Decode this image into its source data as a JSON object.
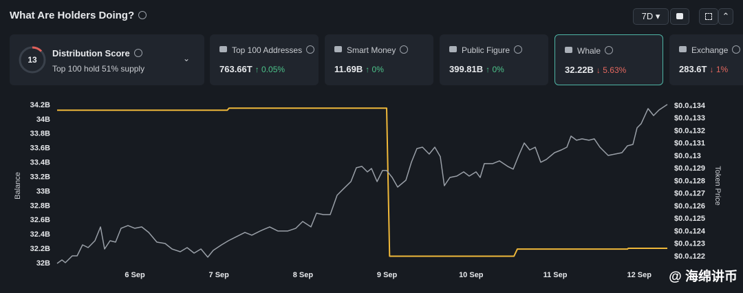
{
  "header": {
    "title": "What Are Holders Doing?",
    "period": "7D"
  },
  "score_card": {
    "score": "13",
    "label": "Distribution Score",
    "sub": "Top 100 hold 51% supply"
  },
  "cards": [
    {
      "label": "Top 100 Addresses",
      "value": "763.66T",
      "change": "↑ 0.05%"
    },
    {
      "label": "Smart Money",
      "value": "11.69B",
      "change": "↑ 0%"
    },
    {
      "label": "Public Figure",
      "value": "399.81B",
      "change": "↑ 0%"
    },
    {
      "label": "Whale",
      "value": "32.22B",
      "change": "↓ 5.63%"
    },
    {
      "label": "Exchange",
      "value": "283.6T",
      "change": "↓ 1%"
    }
  ],
  "watermark": "@ 海绵讲币",
  "chart_data": {
    "type": "line",
    "ylabel": "Balance",
    "y2label": "Token Price",
    "xlim": [
      5.075,
      12.334
    ],
    "xticks": [
      {
        "value": 6,
        "label": "6 Sep"
      },
      {
        "value": 7,
        "label": "7 Sep"
      },
      {
        "value": 8,
        "label": "8 Sep"
      },
      {
        "value": 9,
        "label": "9 Sep"
      },
      {
        "value": 10,
        "label": "10 Sep"
      },
      {
        "value": 11,
        "label": "11 Sep"
      },
      {
        "value": 12,
        "label": "12 Sep"
      }
    ],
    "ylim": [
      32,
      34.2
    ],
    "yticks": [
      {
        "value": 32,
        "label": "32B"
      },
      {
        "value": 32.2,
        "label": "32.2B"
      },
      {
        "value": 32.4,
        "label": "32.4B"
      },
      {
        "value": 32.6,
        "label": "32.6B"
      },
      {
        "value": 32.8,
        "label": "32.8B"
      },
      {
        "value": 33,
        "label": "33B"
      },
      {
        "value": 33.2,
        "label": "33.2B"
      },
      {
        "value": 33.4,
        "label": "33.4B"
      },
      {
        "value": 33.6,
        "label": "33.6B"
      },
      {
        "value": 33.8,
        "label": "33.8B"
      },
      {
        "value": 34,
        "label": "34B"
      },
      {
        "value": 34.2,
        "label": "34.2B"
      }
    ],
    "y2lim": [
      1.2145e-05,
      1.3405e-05
    ],
    "y2ticks": [
      {
        "value": 1.22e-05,
        "label": "$0.0₄122"
      },
      {
        "value": 1.23e-05,
        "label": "$0.0₄123"
      },
      {
        "value": 1.24e-05,
        "label": "$0.0₄124"
      },
      {
        "value": 1.25e-05,
        "label": "$0.0₄125"
      },
      {
        "value": 1.26e-05,
        "label": "$0.0₄126"
      },
      {
        "value": 1.27e-05,
        "label": "$0.0₄127"
      },
      {
        "value": 1.28e-05,
        "label": "$0.0₄128"
      },
      {
        "value": 1.29e-05,
        "label": "$0.0₄129"
      },
      {
        "value": 1.3e-05,
        "label": "$0.0₄13"
      },
      {
        "value": 1.31e-05,
        "label": "$0.0₄131"
      },
      {
        "value": 1.32e-05,
        "label": "$0.0₄132"
      },
      {
        "value": 1.33e-05,
        "label": "$0.0₄133"
      },
      {
        "value": 1.34e-05,
        "label": "$0.0₄134"
      }
    ],
    "series": [
      {
        "color": "#f0b93a",
        "axis": "y",
        "x": [
          5.075,
          7.1,
          7.12,
          8.995,
          9.03,
          10.51,
          10.55,
          11.86,
          11.87,
          12.334
        ],
        "values": [
          34.13,
          34.13,
          34.16,
          34.16,
          32.1,
          32.1,
          32.2,
          32.2,
          32.21,
          32.21
        ]
      },
      {
        "color": "#9aa0a8",
        "axis": "y2",
        "x": [
          5.075,
          5.133,
          5.173,
          5.255,
          5.313,
          5.378,
          5.444,
          5.525,
          5.591,
          5.64,
          5.705,
          5.771,
          5.836,
          5.918,
          6,
          6.082,
          6.164,
          6.262,
          6.36,
          6.442,
          6.54,
          6.622,
          6.704,
          6.786,
          6.867,
          6.933,
          7.031,
          7.113,
          7.211,
          7.309,
          7.391,
          7.489,
          7.604,
          7.702,
          7.817,
          7.915,
          7.997,
          8.095,
          8.16,
          8.242,
          8.324,
          8.406,
          8.471,
          8.57,
          8.635,
          8.7,
          8.766,
          8.815,
          8.881,
          8.946,
          8.995,
          9.061,
          9.126,
          9.224,
          9.29,
          9.355,
          9.421,
          9.502,
          9.568,
          9.633,
          9.682,
          9.748,
          9.83,
          9.912,
          9.977,
          10.059,
          10.108,
          10.157,
          10.255,
          10.337,
          10.435,
          10.501,
          10.566,
          10.632,
          10.697,
          10.763,
          10.828,
          10.894,
          10.992,
          11.074,
          11.139,
          11.188,
          11.254,
          11.319,
          11.401,
          11.466,
          11.532,
          11.63,
          11.712,
          11.794,
          11.859,
          11.925,
          11.974,
          12.023,
          12.105,
          12.17,
          12.236,
          12.334
        ],
        "values": [
          1.2145e-05,
          1.2173e-05,
          1.2151e-05,
          1.2205e-05,
          1.2205e-05,
          1.2293e-05,
          1.2271e-05,
          1.2326e-05,
          1.2436e-05,
          1.226e-05,
          1.2326e-05,
          1.2315e-05,
          1.2425e-05,
          1.2447e-05,
          1.2425e-05,
          1.2436e-05,
          1.2392e-05,
          1.2315e-05,
          1.2304e-05,
          1.226e-05,
          1.2238e-05,
          1.2271e-05,
          1.2227e-05,
          1.226e-05,
          1.2195e-05,
          1.2249e-05,
          1.2293e-05,
          1.2326e-05,
          1.2359e-05,
          1.2392e-05,
          1.237e-05,
          1.2403e-05,
          1.2436e-05,
          1.2403e-05,
          1.2403e-05,
          1.2425e-05,
          1.2479e-05,
          1.2436e-05,
          1.2545e-05,
          1.2534e-05,
          1.2534e-05,
          1.2688e-05,
          1.2732e-05,
          1.2797e-05,
          1.2907e-05,
          1.2918e-05,
          1.2874e-05,
          1.2901e-05,
          1.2797e-05,
          1.2885e-05,
          1.2885e-05,
          1.283e-05,
          1.2753e-05,
          1.2808e-05,
          1.2951e-05,
          1.306e-05,
          1.3071e-05,
          1.3016e-05,
          1.3071e-05,
          1.2995e-05,
          1.2764e-05,
          1.283e-05,
          1.2841e-05,
          1.2874e-05,
          1.2841e-05,
          1.2874e-05,
          1.283e-05,
          1.294e-05,
          1.294e-05,
          1.2962e-05,
          1.2918e-05,
          1.2896e-05,
          1.3005e-05,
          1.3104e-05,
          1.3049e-05,
          1.3071e-05,
          1.2951e-05,
          1.2973e-05,
          1.3027e-05,
          1.3049e-05,
          1.3071e-05,
          1.3159e-05,
          1.3126e-05,
          1.3137e-05,
          1.3126e-05,
          1.3137e-05,
          1.3071e-05,
          1.3005e-05,
          1.3016e-05,
          1.3027e-05,
          1.3082e-05,
          1.3093e-05,
          1.3225e-05,
          1.3258e-05,
          1.3378e-05,
          1.3323e-05,
          1.3367e-05,
          1.3411e-05
        ]
      }
    ]
  }
}
